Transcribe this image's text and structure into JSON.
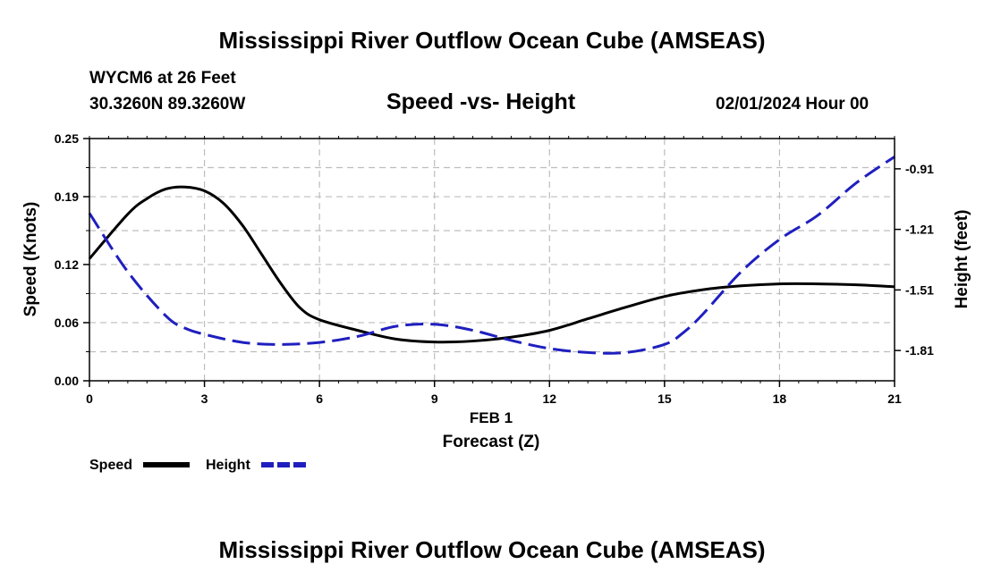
{
  "header": {
    "title": "Mississippi River Outflow Ocean Cube (AMSEAS)",
    "station": "WYCM6 at 26 Feet",
    "coords": "30.3260N  89.3260W",
    "datetime": "02/01/2024 Hour 00",
    "footer_title": "Mississippi River Outflow Ocean Cube (AMSEAS)"
  },
  "chart_data": {
    "type": "line",
    "title": "Speed -vs- Height",
    "xlabel": "Forecast (Z)",
    "xsublabel": "FEB 1",
    "ylabel_left": "Speed (Knots)",
    "ylabel_right": "Height (feet)",
    "xlim": [
      0,
      21
    ],
    "xticks": [
      0,
      3,
      6,
      9,
      12,
      15,
      18,
      21
    ],
    "xtick_labels": [
      "0",
      "3",
      "6",
      "9",
      "12",
      "15",
      "18",
      "21"
    ],
    "ylim_left": [
      0,
      0.25
    ],
    "yticks_left": [
      0,
      0.06,
      0.12,
      0.19,
      0.25
    ],
    "ytick_labels_left": [
      "0.00",
      "0.06",
      "0.12",
      "0.19",
      "0.25"
    ],
    "ylim_right": [
      -1.96,
      -0.76
    ],
    "yticks_right": [
      -1.81,
      -1.51,
      -1.21,
      -0.91
    ],
    "ytick_labels_right": [
      "-1.81",
      "-1.51",
      "-1.21",
      "-0.91"
    ],
    "grid": true,
    "legend": [
      "Speed",
      "Height"
    ],
    "series": [
      {
        "name": "Speed",
        "axis": "left",
        "color": "#000000",
        "style": "solid",
        "x": [
          0,
          1,
          1.5,
          2,
          2.5,
          3,
          3.5,
          4,
          4.5,
          5,
          5.5,
          6,
          7,
          8,
          9,
          10,
          11,
          12,
          13,
          14,
          15,
          16,
          17,
          18,
          19,
          20,
          21
        ],
        "values": [
          0.126,
          0.172,
          0.188,
          0.198,
          0.2,
          0.196,
          0.183,
          0.16,
          0.13,
          0.1,
          0.075,
          0.063,
          0.052,
          0.043,
          0.04,
          0.041,
          0.045,
          0.052,
          0.064,
          0.076,
          0.087,
          0.094,
          0.098,
          0.1,
          0.1,
          0.099,
          0.097
        ]
      },
      {
        "name": "Height",
        "axis": "right",
        "color": "#1f1fbf",
        "style": "dashed",
        "x": [
          0,
          1,
          2,
          2.5,
          3,
          4,
          5,
          6,
          7,
          8,
          9,
          10,
          11,
          12,
          13,
          14,
          15,
          15.5,
          16,
          17,
          18,
          19,
          20,
          21
        ],
        "values": [
          -1.13,
          -1.42,
          -1.64,
          -1.7,
          -1.73,
          -1.77,
          -1.78,
          -1.77,
          -1.74,
          -1.69,
          -1.68,
          -1.71,
          -1.76,
          -1.8,
          -1.82,
          -1.82,
          -1.78,
          -1.72,
          -1.63,
          -1.42,
          -1.26,
          -1.14,
          -0.98,
          -0.85
        ]
      }
    ]
  }
}
